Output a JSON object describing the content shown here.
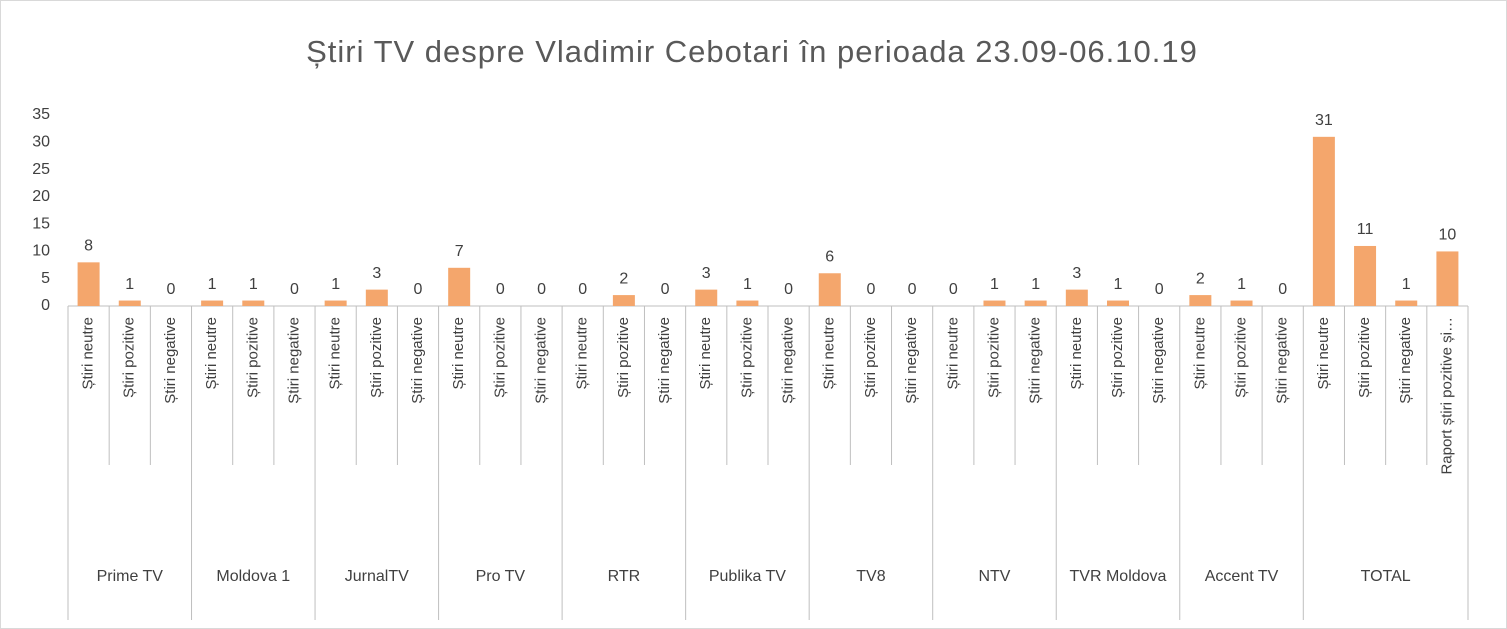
{
  "chart_data": {
    "type": "bar",
    "title": "Știri TV despre Vladimir Cebotari în perioada 23.09-06.10.19",
    "color": "#f4a66c",
    "ylim": [
      0,
      35
    ],
    "yticks": [
      0,
      5,
      10,
      15,
      20,
      25,
      30,
      35
    ],
    "grid": false,
    "groups": [
      {
        "name": "Prime TV",
        "categories": [
          "Știri neutre",
          "Știri pozitive",
          "Știri negative"
        ],
        "values": [
          8,
          1,
          0
        ]
      },
      {
        "name": "Moldova 1",
        "categories": [
          "Știri neutre",
          "Știri pozitive",
          "Știri negative"
        ],
        "values": [
          1,
          1,
          0
        ]
      },
      {
        "name": "JurnalTV",
        "categories": [
          "Știri neutre",
          "Știri pozitive",
          "Știri negative"
        ],
        "values": [
          1,
          3,
          0
        ]
      },
      {
        "name": "Pro TV",
        "categories": [
          "Știri neutre",
          "Știri pozitive",
          "Știri negative"
        ],
        "values": [
          7,
          0,
          0
        ]
      },
      {
        "name": "RTR",
        "categories": [
          "Știri neutre",
          "Știri pozitive",
          "Știri negative"
        ],
        "values": [
          0,
          2,
          0
        ]
      },
      {
        "name": "Publika TV",
        "categories": [
          "Știri neutre",
          "Știri pozitive",
          "Știri negative"
        ],
        "values": [
          3,
          1,
          0
        ]
      },
      {
        "name": "TV8",
        "categories": [
          "Știri neutre",
          "Știri pozitive",
          "Știri negative"
        ],
        "values": [
          6,
          0,
          0
        ]
      },
      {
        "name": "NTV",
        "categories": [
          "Știri neutre",
          "Știri pozitive",
          "Știri negative"
        ],
        "values": [
          0,
          1,
          1
        ]
      },
      {
        "name": "TVR Moldova",
        "categories": [
          "Știri neutre",
          "Știri pozitive",
          "Știri negative"
        ],
        "values": [
          3,
          1,
          0
        ]
      },
      {
        "name": "Accent TV",
        "categories": [
          "Știri neutre",
          "Știri pozitive",
          "Știri negative"
        ],
        "values": [
          2,
          1,
          0
        ]
      },
      {
        "name": "TOTAL",
        "categories": [
          "Știri neutre",
          "Știri pozitive",
          "Știri negative",
          "Raport știri pozitive și…"
        ],
        "values": [
          31,
          11,
          1,
          10
        ]
      }
    ]
  }
}
